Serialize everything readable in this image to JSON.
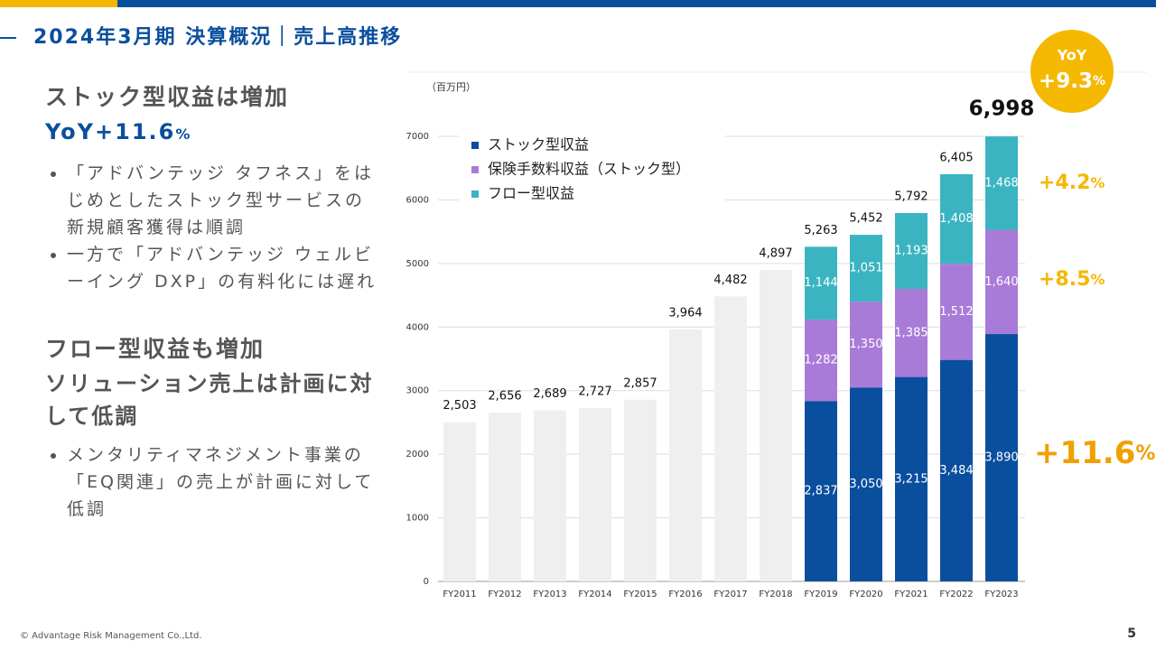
{
  "header": {
    "title": "2024年3月期 決算概況｜売上高推移"
  },
  "sections": [
    {
      "heading": "ストック型収益は増加",
      "subheading": "YoY+11.6",
      "subheading_unit": "%",
      "bullets": [
        "「アドバンテッジ タフネス」をはじめとしたストック型サービスの新規顧客獲得は順調",
        "一方で「アドバンテッジ ウェルビーイング DXP」の有料化には遅れ"
      ]
    },
    {
      "heading": "フロー型収益も増加",
      "subheading": "ソリューション売上は計画に対して低調",
      "bullets": [
        "メンタリティマネジメント事業の「EQ関連」の売上が計画に対して低調"
      ]
    }
  ],
  "chart_data": {
    "type": "stacked_bar",
    "y_unit": "（百万円）",
    "categories": [
      "FY2011",
      "FY2012",
      "FY2013",
      "FY2014",
      "FY2015",
      "FY2016",
      "FY2017",
      "FY2018",
      "FY2019",
      "FY2020",
      "FY2021",
      "FY2022",
      "FY2023"
    ],
    "totals": {
      "color": "#efefef",
      "values": [
        2503,
        2656,
        2689,
        2727,
        2857,
        3964,
        4482,
        4897,
        5263,
        5452,
        5792,
        6405,
        6998
      ],
      "value_labels": [
        "2,503",
        "2,656",
        "2,689",
        "2,727",
        "2,857",
        "3,964",
        "4,482",
        "4,897",
        "5,263",
        "5,452",
        "5,792",
        "6,405",
        "6,998"
      ]
    },
    "series": [
      {
        "name": "ストック型収益",
        "color": "#0a4f9e",
        "values": [
          null,
          null,
          null,
          null,
          null,
          null,
          null,
          null,
          2837,
          3050,
          3215,
          3484,
          3890
        ],
        "value_labels": [
          null,
          null,
          null,
          null,
          null,
          null,
          null,
          null,
          "2,837",
          "3,050",
          "3,215",
          "3,484",
          "3,890"
        ]
      },
      {
        "name": "保険手数料収益（ストック型）",
        "color": "#a97bd8",
        "values": [
          null,
          null,
          null,
          null,
          null,
          null,
          null,
          null,
          1282,
          1350,
          1385,
          1512,
          1640
        ],
        "value_labels": [
          null,
          null,
          null,
          null,
          null,
          null,
          null,
          null,
          "1,282",
          "1,350",
          "1,385",
          "1,512",
          "1,640"
        ]
      },
      {
        "name": "フロー型収益",
        "color": "#3bb4c1",
        "values": [
          null,
          null,
          null,
          null,
          null,
          null,
          null,
          null,
          1144,
          1051,
          1193,
          1408,
          1468
        ],
        "value_labels": [
          null,
          null,
          null,
          null,
          null,
          null,
          null,
          null,
          "1,144",
          "1,051",
          "1,193",
          "1,408",
          "1,468"
        ]
      }
    ],
    "ylim": [
      0,
      7000
    ],
    "yticks": [
      0,
      1000,
      2000,
      3000,
      4000,
      5000,
      6000,
      7000
    ],
    "grid": true,
    "yoy": {
      "label": "YoY",
      "value": "+9.3",
      "unit": "%"
    },
    "segment_growth": [
      {
        "value": "+11.6",
        "unit": "%"
      },
      {
        "value": "+8.5",
        "unit": "%"
      },
      {
        "value": "+4.2",
        "unit": "%"
      }
    ]
  },
  "footer": {
    "copyright": "© Advantage Risk Management Co.,Ltd.",
    "page": "5"
  }
}
